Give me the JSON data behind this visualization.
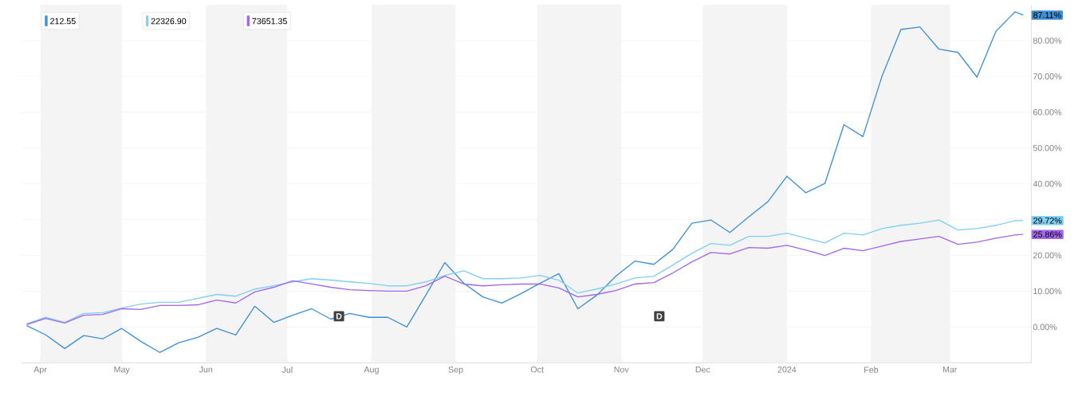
{
  "chart_data": {
    "type": "line",
    "x": [
      "2023-03-27",
      "2023-04-03",
      "2023-04-10",
      "2023-04-17",
      "2023-04-24",
      "2023-05-01",
      "2023-05-08",
      "2023-05-15",
      "2023-05-22",
      "2023-05-29",
      "2023-06-05",
      "2023-06-12",
      "2023-06-19",
      "2023-06-26",
      "2023-07-03",
      "2023-07-10",
      "2023-07-17",
      "2023-07-24",
      "2023-07-31",
      "2023-08-07",
      "2023-08-14",
      "2023-08-21",
      "2023-08-28",
      "2023-09-04",
      "2023-09-11",
      "2023-09-18",
      "2023-09-25",
      "2023-10-02",
      "2023-10-09",
      "2023-10-16",
      "2023-10-23",
      "2023-10-30",
      "2023-11-06",
      "2023-11-13",
      "2023-11-20",
      "2023-11-27",
      "2023-12-04",
      "2023-12-11",
      "2023-12-18",
      "2023-12-25",
      "2024-01-01",
      "2024-01-08",
      "2024-01-15",
      "2024-01-22",
      "2024-01-29",
      "2024-02-05",
      "2024-02-12",
      "2024-02-19",
      "2024-02-26",
      "2024-03-04",
      "2024-03-11",
      "2024-03-18",
      "2024-03-25",
      "2024-03-28"
    ],
    "series": [
      {
        "color": "#3d8fd6",
        "values": [
          0.4,
          -2.2,
          -6.0,
          -2.4,
          -3.3,
          -0.4,
          -4.0,
          -7.1,
          -4.4,
          -2.9,
          -0.4,
          -2.2,
          5.8,
          1.3,
          3.3,
          5.1,
          2.2,
          3.8,
          2.7,
          2.7,
          0.0,
          8.9,
          18.0,
          12.2,
          8.4,
          6.7,
          9.3,
          12.2,
          14.9,
          5.1,
          8.9,
          14.2,
          18.4,
          17.5,
          21.7,
          29.0,
          29.9,
          26.4,
          30.8,
          35.0,
          42.1,
          37.5,
          40.1,
          56.5,
          53.2,
          70.0,
          83.1,
          83.8,
          77.6,
          76.7,
          69.8,
          82.6,
          88.0,
          87.11
        ],
        "value_labels": [
          null,
          null,
          null,
          null,
          null,
          null,
          null,
          null,
          null,
          null,
          null,
          null,
          null,
          null,
          null,
          null,
          null,
          null,
          null,
          null,
          null,
          null,
          null,
          null,
          null,
          null,
          null,
          null,
          null,
          null,
          null,
          null,
          null,
          null,
          null,
          null,
          null,
          null,
          null,
          null,
          null,
          null,
          null,
          null,
          null,
          null,
          null,
          null,
          null,
          null,
          null,
          null,
          null,
          "87.11%"
        ]
      },
      {
        "color": "#7fd0f2",
        "values": [
          0.9,
          2.7,
          1.3,
          3.8,
          4.0,
          5.3,
          6.4,
          6.9,
          6.9,
          8.0,
          9.1,
          8.6,
          10.6,
          11.5,
          12.6,
          13.5,
          13.1,
          12.6,
          12.2,
          11.5,
          11.5,
          12.6,
          14.4,
          15.7,
          13.5,
          13.5,
          13.7,
          14.4,
          13.1,
          9.5,
          10.6,
          12.0,
          13.7,
          14.2,
          17.3,
          20.6,
          23.3,
          22.8,
          25.3,
          25.3,
          26.2,
          24.8,
          23.5,
          26.2,
          25.7,
          27.5,
          28.4,
          29.0,
          29.9,
          27.1,
          27.5,
          28.4,
          29.7,
          29.72
        ],
        "value_labels": [
          null,
          null,
          null,
          null,
          null,
          null,
          null,
          null,
          null,
          null,
          null,
          null,
          null,
          null,
          null,
          null,
          null,
          null,
          null,
          null,
          null,
          null,
          null,
          null,
          null,
          null,
          null,
          null,
          null,
          null,
          null,
          null,
          null,
          null,
          null,
          null,
          null,
          null,
          null,
          null,
          null,
          null,
          null,
          null,
          null,
          null,
          null,
          null,
          null,
          null,
          null,
          null,
          null,
          "29.72%"
        ]
      },
      {
        "color": "#a366ee",
        "values": [
          0.7,
          2.4,
          1.1,
          3.3,
          3.5,
          5.1,
          4.9,
          6.0,
          6.0,
          6.2,
          7.5,
          6.7,
          9.8,
          11.1,
          12.9,
          12.0,
          11.1,
          10.4,
          10.2,
          10.0,
          10.0,
          11.5,
          14.2,
          12.0,
          11.5,
          11.8,
          12.0,
          12.0,
          10.9,
          8.4,
          9.1,
          10.2,
          12.0,
          12.4,
          15.1,
          18.2,
          20.8,
          20.4,
          22.2,
          22.0,
          22.8,
          21.5,
          20.0,
          22.0,
          21.3,
          22.6,
          23.9,
          24.6,
          25.3,
          23.1,
          23.7,
          24.8,
          25.7,
          25.86
        ],
        "value_labels": [
          null,
          null,
          null,
          null,
          null,
          null,
          null,
          null,
          null,
          null,
          null,
          null,
          null,
          null,
          null,
          null,
          null,
          null,
          null,
          null,
          null,
          null,
          null,
          null,
          null,
          null,
          null,
          null,
          null,
          null,
          null,
          null,
          null,
          null,
          null,
          null,
          null,
          null,
          null,
          null,
          null,
          null,
          null,
          null,
          null,
          null,
          null,
          null,
          null,
          null,
          null,
          null,
          null,
          "25.86%"
        ]
      }
    ],
    "xlim": [
      "2023-03-25",
      "2024-03-31"
    ],
    "xticks": [
      {
        "value": "2023-04-01",
        "label": "Apr"
      },
      {
        "value": "2023-05-01",
        "label": "May"
      },
      {
        "value": "2023-06-01",
        "label": "Jun"
      },
      {
        "value": "2023-07-01",
        "label": "Jul"
      },
      {
        "value": "2023-08-01",
        "label": "Aug"
      },
      {
        "value": "2023-09-01",
        "label": "Sep"
      },
      {
        "value": "2023-10-01",
        "label": "Oct"
      },
      {
        "value": "2023-11-01",
        "label": "Nov"
      },
      {
        "value": "2023-12-01",
        "label": "Dec"
      },
      {
        "value": "2024-01-01",
        "label": "2024"
      },
      {
        "value": "2024-02-01",
        "label": "Feb"
      },
      {
        "value": "2024-03-01",
        "label": "Mar"
      }
    ],
    "ylim": [
      -10,
      90
    ],
    "yticks": [
      {
        "value": 0,
        "label": "0.00%"
      },
      {
        "value": 10,
        "label": "10.00%"
      },
      {
        "value": 20,
        "label": "20.00%"
      },
      {
        "value": 30,
        "label": null
      },
      {
        "value": 40,
        "label": "40.00%"
      },
      {
        "value": 50,
        "label": "50.00%"
      },
      {
        "value": 60,
        "label": "60.00%"
      },
      {
        "value": 70,
        "label": "70.00%"
      },
      {
        "value": 80,
        "label": "80.00%"
      }
    ],
    "grid": "y",
    "bands": [
      {
        "axis": "x",
        "from": "2023-04-01",
        "to": "2023-05-01",
        "color": "#f4f4f4"
      },
      {
        "axis": "x",
        "from": "2023-06-01",
        "to": "2023-07-01",
        "color": "#f4f4f4"
      },
      {
        "axis": "x",
        "from": "2023-08-01",
        "to": "2023-09-01",
        "color": "#f4f4f4"
      },
      {
        "axis": "x",
        "from": "2023-10-01",
        "to": "2023-11-01",
        "color": "#f4f4f4"
      },
      {
        "axis": "x",
        "from": "2023-12-01",
        "to": "2024-01-01",
        "color": "#f4f4f4"
      },
      {
        "axis": "x",
        "from": "2024-02-01",
        "to": "2024-03-01",
        "color": "#f4f4f4"
      }
    ],
    "annotations": [
      "212.55",
      "22326.90",
      "73651.35",
      {
        "text": "D",
        "x": "2023-07-20",
        "y": 3
      },
      {
        "text": "D",
        "x": "2023-11-15",
        "y": 3
      }
    ]
  }
}
